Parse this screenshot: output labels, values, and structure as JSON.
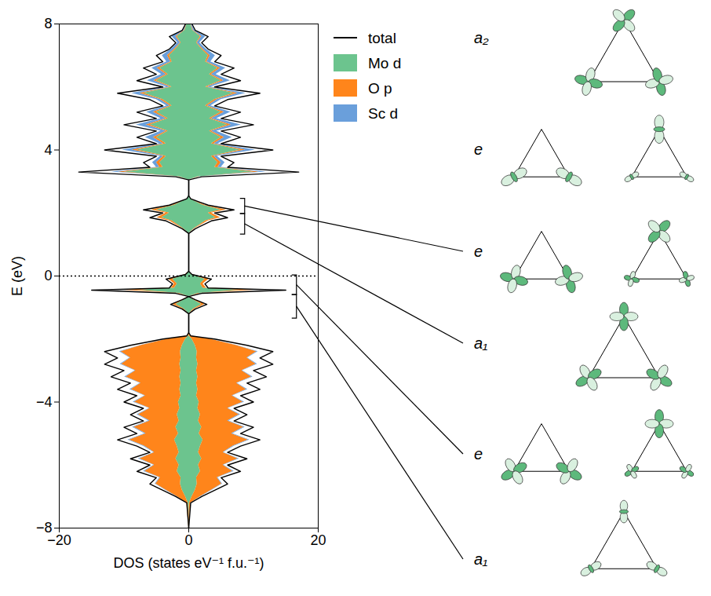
{
  "chart_data": {
    "type": "area",
    "orientation": "horizontal",
    "stacked": true,
    "legend": "top-right",
    "x_label": "DOS (states eV⁻¹ f.u.⁻¹)",
    "y_label": "E (eV)",
    "xlim": [
      -20,
      20
    ],
    "xticks": [
      -20,
      0,
      20
    ],
    "ylim": [
      -8,
      8
    ],
    "yticks": [
      -8,
      -4,
      0,
      4,
      8
    ],
    "fermi_level": 0,
    "energies": [
      -8,
      -7.2,
      -7,
      -6.8,
      -6.6,
      -6.4,
      -6.2,
      -6,
      -5.8,
      -5.6,
      -5.4,
      -5.2,
      -5,
      -4.8,
      -4.6,
      -4.4,
      -4.2,
      -4,
      -3.8,
      -3.6,
      -3.4,
      -3.2,
      -3,
      -2.8,
      -2.6,
      -2.4,
      -2.2,
      -2,
      -1.9,
      -1.8,
      -1.2,
      -1.05,
      -0.9,
      -0.75,
      -0.65,
      -0.55,
      -0.45,
      -0.38,
      -0.25,
      -0.1,
      0.05,
      0.15,
      1.35,
      1.5,
      1.75,
      1.85,
      2,
      2.1,
      2.25,
      2.45,
      2.55,
      3.05,
      3.15,
      3.3,
      3.45,
      3.6,
      3.8,
      4,
      4.2,
      4.4,
      4.6,
      4.8,
      5,
      5.2,
      5.4,
      5.6,
      5.8,
      6,
      6.2,
      6.4,
      6.6,
      6.8,
      7,
      7.2,
      7.4,
      7.6,
      7.8,
      8
    ],
    "series": [
      {
        "name": "total",
        "color": "#000000",
        "type": "line",
        "values": [
          0,
          0.3,
          2,
          4,
          6,
          5,
          8,
          6,
          9,
          6,
          8,
          11,
          8,
          10,
          7,
          9,
          7,
          10,
          8,
          11,
          9,
          12,
          10,
          13,
          11,
          13,
          9,
          4,
          0.3,
          0,
          0,
          1,
          2.8,
          1,
          0,
          2,
          15,
          3,
          2.5,
          3.5,
          0.5,
          0,
          0,
          1,
          3.5,
          6,
          4,
          7,
          3,
          0.3,
          0,
          0,
          2,
          17,
          6,
          7,
          5,
          13,
          5,
          8,
          5,
          10,
          5,
          8,
          4,
          6,
          11,
          4,
          8,
          5,
          7,
          4,
          5,
          3,
          2,
          3,
          1,
          0.5
        ],
        "values_down": [
          0,
          -0.3,
          -2,
          -4,
          -6,
          -5,
          -8,
          -6,
          -9,
          -6,
          -8,
          -11,
          -8,
          -10,
          -7,
          -9,
          -7,
          -10,
          -8,
          -11,
          -9,
          -12,
          -10,
          -13,
          -11,
          -13,
          -9,
          -4,
          -0.3,
          0,
          0,
          -1,
          -2.8,
          -1,
          0,
          -2,
          -15,
          -3,
          -2.5,
          -3.5,
          -0.5,
          0,
          0,
          -1,
          -3.5,
          -6,
          -4,
          -7,
          -3,
          -0.3,
          0,
          0,
          -2,
          -17,
          -6,
          -7,
          -5,
          -13,
          -5,
          -8,
          -5,
          -10,
          -5,
          -8,
          -4,
          -6,
          -11,
          -4,
          -8,
          -5,
          -7,
          -4,
          -5,
          -3,
          -2,
          -3,
          -1,
          -0.5
        ]
      },
      {
        "name": "Mo d",
        "color": "#6cc48e",
        "type": "area",
        "values": [
          0,
          0.1,
          0.5,
          1,
          1.3,
          1.2,
          1.8,
          1.5,
          2,
          1.5,
          1.8,
          2.2,
          1.6,
          2,
          1.5,
          1.8,
          1.4,
          1.6,
          1.2,
          1.4,
          1.2,
          1.4,
          1.2,
          1.4,
          1.2,
          1.3,
          1,
          0.5,
          0.05,
          0,
          0,
          0.7,
          2,
          0.7,
          0,
          1.5,
          8,
          2.2,
          1.8,
          2.5,
          0.4,
          0,
          0,
          0.8,
          2.6,
          4.2,
          3,
          5,
          2.2,
          0.2,
          0,
          0,
          1.5,
          10,
          4,
          4.5,
          3.5,
          8,
          3.5,
          5,
          3.2,
          6,
          3.2,
          5,
          2.6,
          4,
          7,
          2.6,
          5,
          3.2,
          4.5,
          2.6,
          3,
          2,
          1.2,
          1.8,
          0.6,
          0.3
        ],
        "values_down": [
          0,
          -0.1,
          -0.5,
          -1,
          -1.3,
          -1.2,
          -1.8,
          -1.5,
          -2,
          -1.5,
          -1.8,
          -2.2,
          -1.6,
          -2,
          -1.5,
          -1.8,
          -1.4,
          -1.6,
          -1.2,
          -1.4,
          -1.2,
          -1.4,
          -1.2,
          -1.4,
          -1.2,
          -1.3,
          -1,
          -0.5,
          -0.05,
          0,
          0,
          -0.7,
          -2,
          -0.7,
          0,
          -1.5,
          -8,
          -2.2,
          -1.8,
          -2.5,
          -0.4,
          0,
          0,
          -0.8,
          -2.6,
          -4.2,
          -3,
          -5,
          -2.2,
          -0.2,
          0,
          0,
          -1.5,
          -10,
          -4,
          -4.5,
          -3.5,
          -8,
          -3.5,
          -5,
          -3.2,
          -6,
          -3.2,
          -5,
          -2.6,
          -4,
          -7,
          -2.6,
          -5,
          -3.2,
          -4.5,
          -2.6,
          -3,
          -2,
          -1.2,
          -1.8,
          -0.6,
          -0.3
        ]
      },
      {
        "name": "O p",
        "color": "#ff851b",
        "type": "area",
        "values": [
          0,
          0.2,
          1.3,
          2.5,
          3.8,
          3.2,
          5,
          3.8,
          5.6,
          3.8,
          5,
          7,
          5,
          6.5,
          4.5,
          6,
          4.6,
          6.8,
          5.5,
          7.5,
          6.2,
          8.3,
          7,
          9,
          7.8,
          9.2,
          6.3,
          2.8,
          0.2,
          0,
          0,
          0.2,
          0.5,
          0.2,
          0,
          0.3,
          2,
          0.5,
          0.4,
          0.6,
          0.1,
          0,
          0,
          0.1,
          0.4,
          0.7,
          0.5,
          0.8,
          0.3,
          0,
          0,
          0,
          0.2,
          1,
          0.5,
          0.5,
          0.4,
          0.8,
          0.4,
          0.5,
          0.3,
          0.6,
          0.3,
          0.5,
          0.3,
          0.4,
          0.6,
          0.3,
          0.4,
          0.3,
          0.4,
          0.2,
          0.3,
          0.2,
          0.1,
          0.2,
          0.1,
          0.05
        ],
        "values_down": [
          0,
          -0.2,
          -1.3,
          -2.5,
          -3.8,
          -3.2,
          -5,
          -3.8,
          -5.6,
          -3.8,
          -5,
          -7,
          -5,
          -6.5,
          -4.5,
          -6,
          -4.6,
          -6.8,
          -5.5,
          -7.5,
          -6.2,
          -8.3,
          -7,
          -9,
          -7.8,
          -9.2,
          -6.3,
          -2.8,
          -0.2,
          0,
          0,
          -0.2,
          -0.5,
          -0.2,
          0,
          -0.3,
          -2,
          -0.5,
          -0.4,
          -0.6,
          -0.1,
          0,
          0,
          -0.1,
          -0.4,
          -0.7,
          -0.5,
          -0.8,
          -0.3,
          0,
          0,
          0,
          -0.2,
          -1,
          -0.5,
          -0.5,
          -0.4,
          -0.8,
          -0.4,
          -0.5,
          -0.3,
          -0.6,
          -0.3,
          -0.5,
          -0.3,
          -0.4,
          -0.6,
          -0.3,
          -0.4,
          -0.3,
          -0.4,
          -0.2,
          -0.3,
          -0.2,
          -0.1,
          -0.2,
          -0.1,
          -0.05
        ]
      },
      {
        "name": "Sc d",
        "color": "#6a9fdb",
        "type": "area",
        "values": [
          0,
          0,
          0.1,
          0.1,
          0.1,
          0.1,
          0.2,
          0.1,
          0.2,
          0.1,
          0.2,
          0.2,
          0.2,
          0.2,
          0.2,
          0.2,
          0.1,
          0.2,
          0.1,
          0.2,
          0.1,
          0.2,
          0.1,
          0.2,
          0.1,
          0.2,
          0.1,
          0.1,
          0,
          0,
          0,
          0,
          0,
          0,
          0,
          0,
          0,
          0,
          0,
          0,
          0,
          0,
          0,
          0,
          0,
          0,
          0,
          0,
          0,
          0,
          0,
          0,
          0.1,
          1,
          0.5,
          0.6,
          0.5,
          1.5,
          0.6,
          1.2,
          0.8,
          1.5,
          0.8,
          1,
          0.5,
          0.6,
          1.2,
          0.5,
          1,
          0.7,
          0.8,
          0.6,
          0.8,
          0.5,
          0.4,
          0.6,
          0.2,
          0.1
        ],
        "values_down": [
          0,
          0,
          -0.1,
          -0.1,
          -0.1,
          -0.1,
          -0.2,
          -0.1,
          -0.2,
          -0.1,
          -0.2,
          -0.2,
          -0.2,
          -0.2,
          -0.2,
          -0.2,
          -0.1,
          -0.2,
          -0.1,
          -0.2,
          -0.1,
          -0.2,
          -0.1,
          -0.2,
          -0.1,
          -0.2,
          -0.1,
          -0.1,
          0,
          0,
          0,
          0,
          0,
          0,
          0,
          0,
          0,
          0,
          0,
          0,
          0,
          0,
          0,
          0,
          0,
          0,
          0,
          0,
          0,
          0,
          0,
          0,
          -0.1,
          -1,
          -0.5,
          -0.6,
          -0.5,
          -1.5,
          -0.6,
          -1.2,
          -0.8,
          -1.5,
          -0.8,
          -1,
          -0.5,
          -0.6,
          -1.2,
          -0.5,
          -1,
          -0.7,
          -0.8,
          -0.6,
          -0.8,
          -0.5,
          -0.4,
          -0.6,
          -0.2,
          -0.1
        ]
      }
    ],
    "annotations": [
      {
        "label": "a₂",
        "range": null
      },
      {
        "label": "e",
        "range": null
      },
      {
        "label": "e",
        "range": [
          1.97,
          2.45
        ]
      },
      {
        "label": "a₁",
        "range": [
          1.32,
          1.97
        ]
      },
      {
        "label": "e",
        "range": [
          -0.6,
          0.02
        ]
      },
      {
        "label": "a₁",
        "range": [
          -1.35,
          -0.6
        ]
      }
    ]
  }
}
